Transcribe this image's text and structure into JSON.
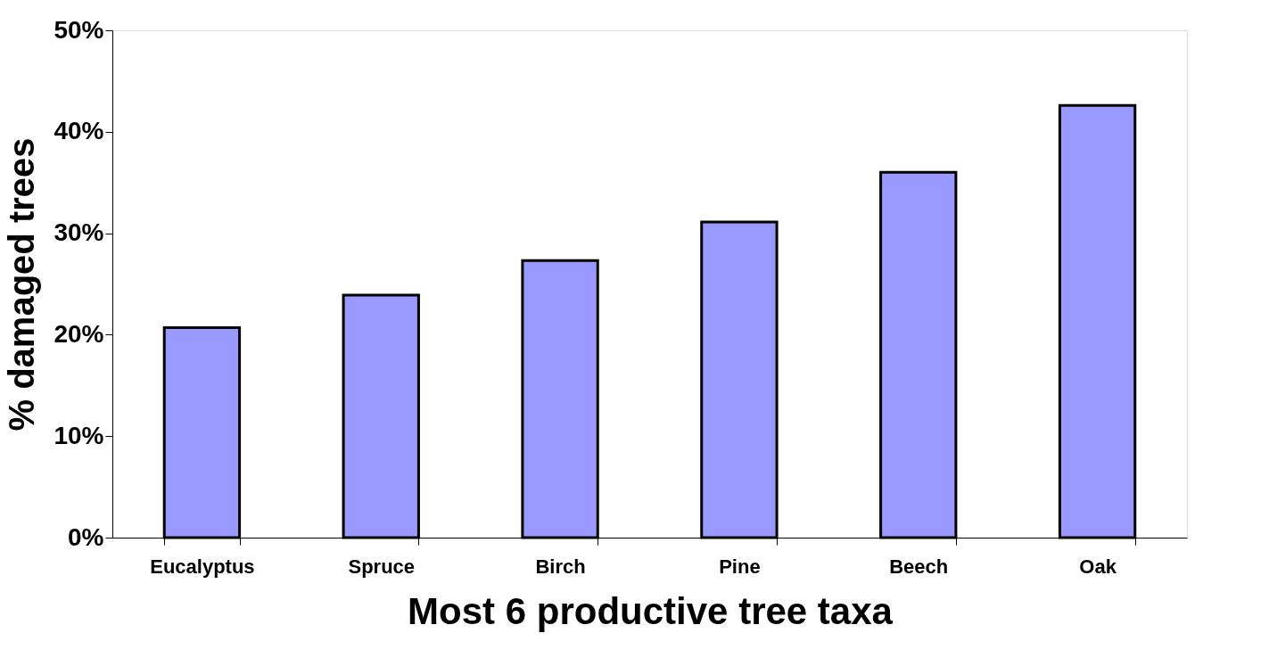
{
  "chart_data": {
    "type": "bar",
    "xlabel": "Most 6 productive tree taxa",
    "ylabel": "% damaged trees",
    "categories": [
      "Eucalyptus",
      "Spruce",
      "Birch",
      "Pine",
      "Beech",
      "Oak"
    ],
    "values": [
      20.7,
      23.9,
      27.3,
      31.1,
      36.0,
      42.6
    ],
    "color": "#9999ff",
    "ylim": [
      0,
      50
    ],
    "yticks": [
      {
        "value": 0,
        "label": "0%"
      },
      {
        "value": 10,
        "label": "10%"
      },
      {
        "value": 20,
        "label": "20%"
      },
      {
        "value": 30,
        "label": "30%"
      },
      {
        "value": 40,
        "label": "40%"
      },
      {
        "value": 50,
        "label": "50%"
      }
    ],
    "grid": false
  }
}
